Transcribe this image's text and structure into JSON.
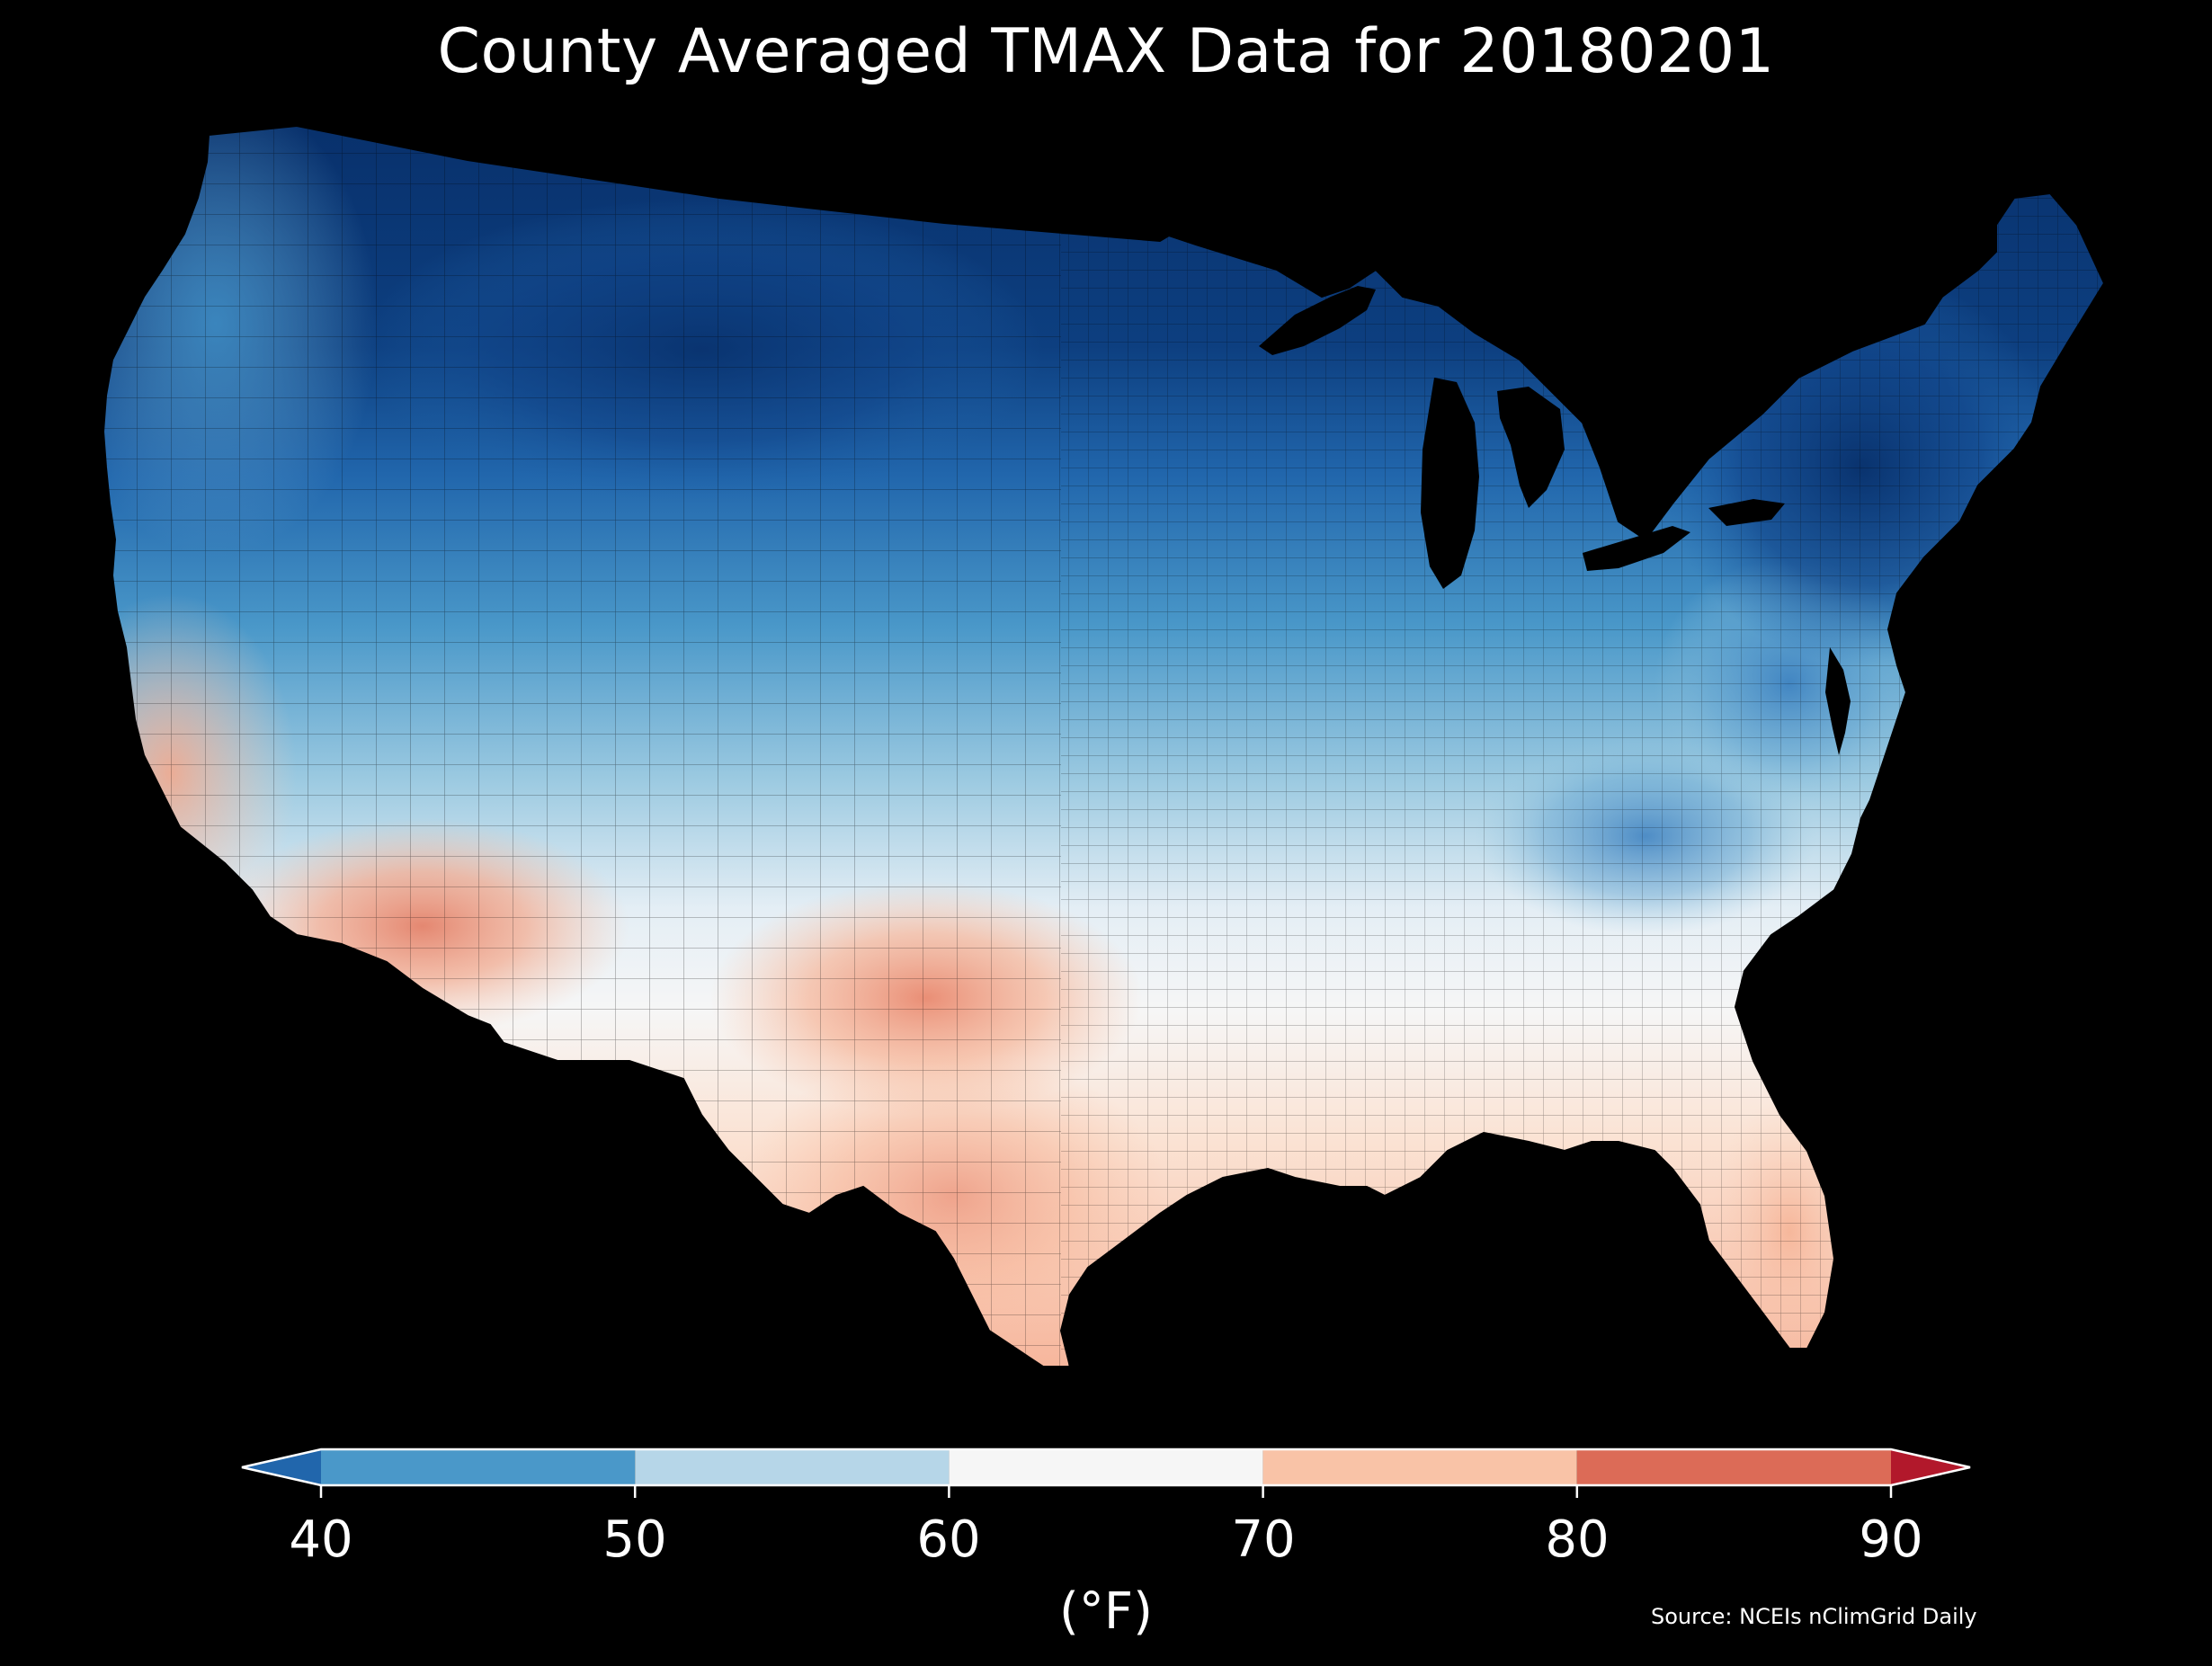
{
  "title": "County Averaged TMAX Data for 20180201",
  "source": "Source: NCEIs nClimGrid Daily",
  "colorbar": {
    "unit_label": "(°F)",
    "ticks": [
      "40",
      "50",
      "60",
      "70",
      "80",
      "90"
    ],
    "bins": [
      {
        "from": 40,
        "to": 50,
        "color": "#4a98c9"
      },
      {
        "from": 50,
        "to": 60,
        "color": "#b6d6e8"
      },
      {
        "from": 60,
        "to": 70,
        "color": "#f6f6f6"
      },
      {
        "from": 70,
        "to": 80,
        "color": "#f9c3a7"
      },
      {
        "from": 80,
        "to": 90,
        "color": "#dc6b57"
      }
    ],
    "under_color": "#2166ac",
    "over_color": "#b2182b",
    "extend": "both",
    "range": [
      40,
      90
    ]
  },
  "map": {
    "region": "contiguous-us-counties",
    "background_color": "#000000",
    "county_border_color": "#000000"
  }
}
